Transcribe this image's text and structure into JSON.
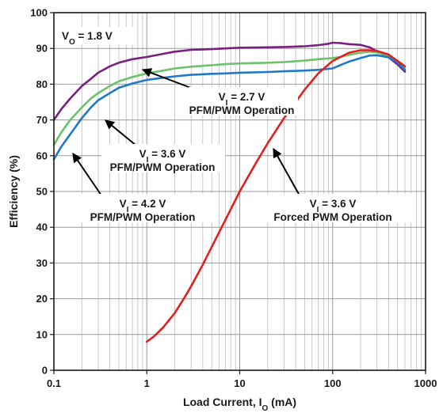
{
  "chart_data": {
    "type": "line",
    "title": "",
    "xlabel": {
      "main": "Load Current, I",
      "sub": "O",
      "suffix": " (mA)"
    },
    "ylabel": "Efficiency (%)",
    "x_scale": "log",
    "xlim": [
      0.1,
      1000
    ],
    "ylim": [
      0,
      100
    ],
    "grid": true,
    "x_ticks": [
      {
        "value": 0.1,
        "label": "0.1"
      },
      {
        "value": 1,
        "label": "1"
      },
      {
        "value": 10,
        "label": "10"
      },
      {
        "value": 100,
        "label": "100"
      },
      {
        "value": 1000,
        "label": "1000"
      }
    ],
    "y_ticks": [
      {
        "value": 0,
        "label": "0"
      },
      {
        "value": 10,
        "label": "10"
      },
      {
        "value": 20,
        "label": "20"
      },
      {
        "value": 30,
        "label": "30"
      },
      {
        "value": 40,
        "label": "40"
      },
      {
        "value": 50,
        "label": "50"
      },
      {
        "value": 60,
        "label": "60"
      },
      {
        "value": 70,
        "label": "70"
      },
      {
        "value": 80,
        "label": "80"
      },
      {
        "value": 90,
        "label": "90"
      },
      {
        "value": 100,
        "label": "100"
      }
    ],
    "series": [
      {
        "key": "vi-2-7",
        "color": "#7a1f7f",
        "x": [
          0.1,
          0.12,
          0.15,
          0.2,
          0.25,
          0.3,
          0.4,
          0.5,
          0.7,
          1,
          1.5,
          2,
          3,
          5,
          7,
          10,
          20,
          30,
          50,
          70,
          90,
          100,
          120,
          150,
          200,
          250,
          300,
          400,
          500,
          600
        ],
        "y": [
          70,
          73,
          76,
          79.5,
          81.5,
          83.2,
          85,
          86,
          87,
          87.6,
          88.5,
          89.1,
          89.6,
          89.8,
          90,
          90.2,
          90.3,
          90.4,
          90.6,
          90.9,
          91.3,
          91.6,
          91.5,
          91.2,
          91,
          90.3,
          89.2,
          87.5,
          85.5,
          83.5
        ]
      },
      {
        "key": "vi-3-6-pfm",
        "color": "#6cc16c",
        "x": [
          0.1,
          0.12,
          0.15,
          0.2,
          0.25,
          0.3,
          0.4,
          0.5,
          0.7,
          1,
          1.5,
          2,
          3,
          5,
          7,
          10,
          20,
          30,
          50,
          70,
          100,
          120,
          150,
          200,
          250,
          300,
          400,
          500,
          600
        ],
        "y": [
          63,
          66.5,
          70,
          73.5,
          76,
          77.5,
          79.5,
          80.8,
          82,
          83,
          83.8,
          84.4,
          84.9,
          85.3,
          85.6,
          85.8,
          86,
          86.2,
          86.6,
          87,
          87.3,
          87.6,
          88.2,
          88.8,
          89.1,
          88.9,
          88,
          86.5,
          84.5
        ]
      },
      {
        "key": "vi-4-2",
        "color": "#1f78c8",
        "x": [
          0.1,
          0.12,
          0.15,
          0.2,
          0.25,
          0.3,
          0.4,
          0.5,
          0.7,
          1,
          1.5,
          2,
          3,
          5,
          7,
          10,
          20,
          30,
          50,
          70,
          100,
          120,
          150,
          200,
          250,
          300,
          400,
          500,
          600
        ],
        "y": [
          59,
          62.5,
          66,
          70.5,
          73.5,
          75.5,
          77.5,
          79,
          80.2,
          81.2,
          81.8,
          82.2,
          82.6,
          82.9,
          83,
          83.2,
          83.4,
          83.6,
          83.8,
          84,
          84.4,
          85.3,
          86.3,
          87.3,
          88,
          88.1,
          87.5,
          86,
          84
        ]
      },
      {
        "key": "vi-3-6-forced",
        "color": "#e02020",
        "x": [
          1,
          1.2,
          1.5,
          2,
          2.5,
          3,
          4,
          5,
          7,
          10,
          15,
          20,
          30,
          40,
          50,
          70,
          100,
          150,
          200,
          250,
          300,
          400,
          500,
          600
        ],
        "y": [
          8,
          9.5,
          12,
          16,
          20,
          23.5,
          29.5,
          34.5,
          42,
          50,
          58,
          63.5,
          70.5,
          75,
          78.5,
          83,
          86.5,
          88.8,
          89.5,
          89.5,
          89.3,
          88.3,
          86.5,
          85
        ]
      }
    ],
    "annotations": [
      {
        "key": "vo",
        "lines": [
          {
            "base": "V",
            "sub": "O",
            "rest": " = 1.8 V"
          }
        ]
      },
      {
        "key": "vi27",
        "lines": [
          {
            "base": "V",
            "sub": "I",
            "rest": " = 2.7 V"
          },
          {
            "text": "PFM/PWM Operation"
          }
        ]
      },
      {
        "key": "vi36",
        "lines": [
          {
            "base": "V",
            "sub": "I",
            "rest": " = 3.6 V"
          },
          {
            "text": "PFM/PWM Operation"
          }
        ]
      },
      {
        "key": "vi42",
        "lines": [
          {
            "base": "V",
            "sub": "I",
            "rest": " = 4.2 V"
          },
          {
            "text": "PFM/PWM Operation"
          }
        ]
      },
      {
        "key": "vi36f",
        "lines": [
          {
            "base": "V",
            "sub": "I",
            "rest": " = 3.6 V"
          },
          {
            "text": "Forced PWM Operation"
          }
        ]
      }
    ]
  }
}
